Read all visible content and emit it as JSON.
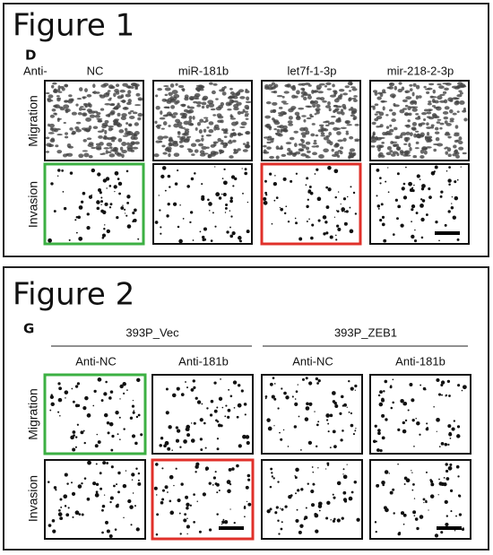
{
  "figure1": {
    "title": "Figure 1",
    "panel": "D",
    "prefix": "Anti-",
    "columns": [
      "NC",
      "miR-181b",
      "let7f-1-3p",
      "mir-218-2-3p"
    ],
    "rows": [
      "Migration",
      "Invasion"
    ]
  },
  "figure2": {
    "title": "Figure 2",
    "panel": "G",
    "groups": [
      "393P_Vec",
      "393P_ZEB1"
    ],
    "columns": [
      "Anti-NC",
      "Anti-181b",
      "Anti-NC",
      "Anti-181b"
    ],
    "rows": [
      "Migration",
      "Invasion"
    ]
  }
}
